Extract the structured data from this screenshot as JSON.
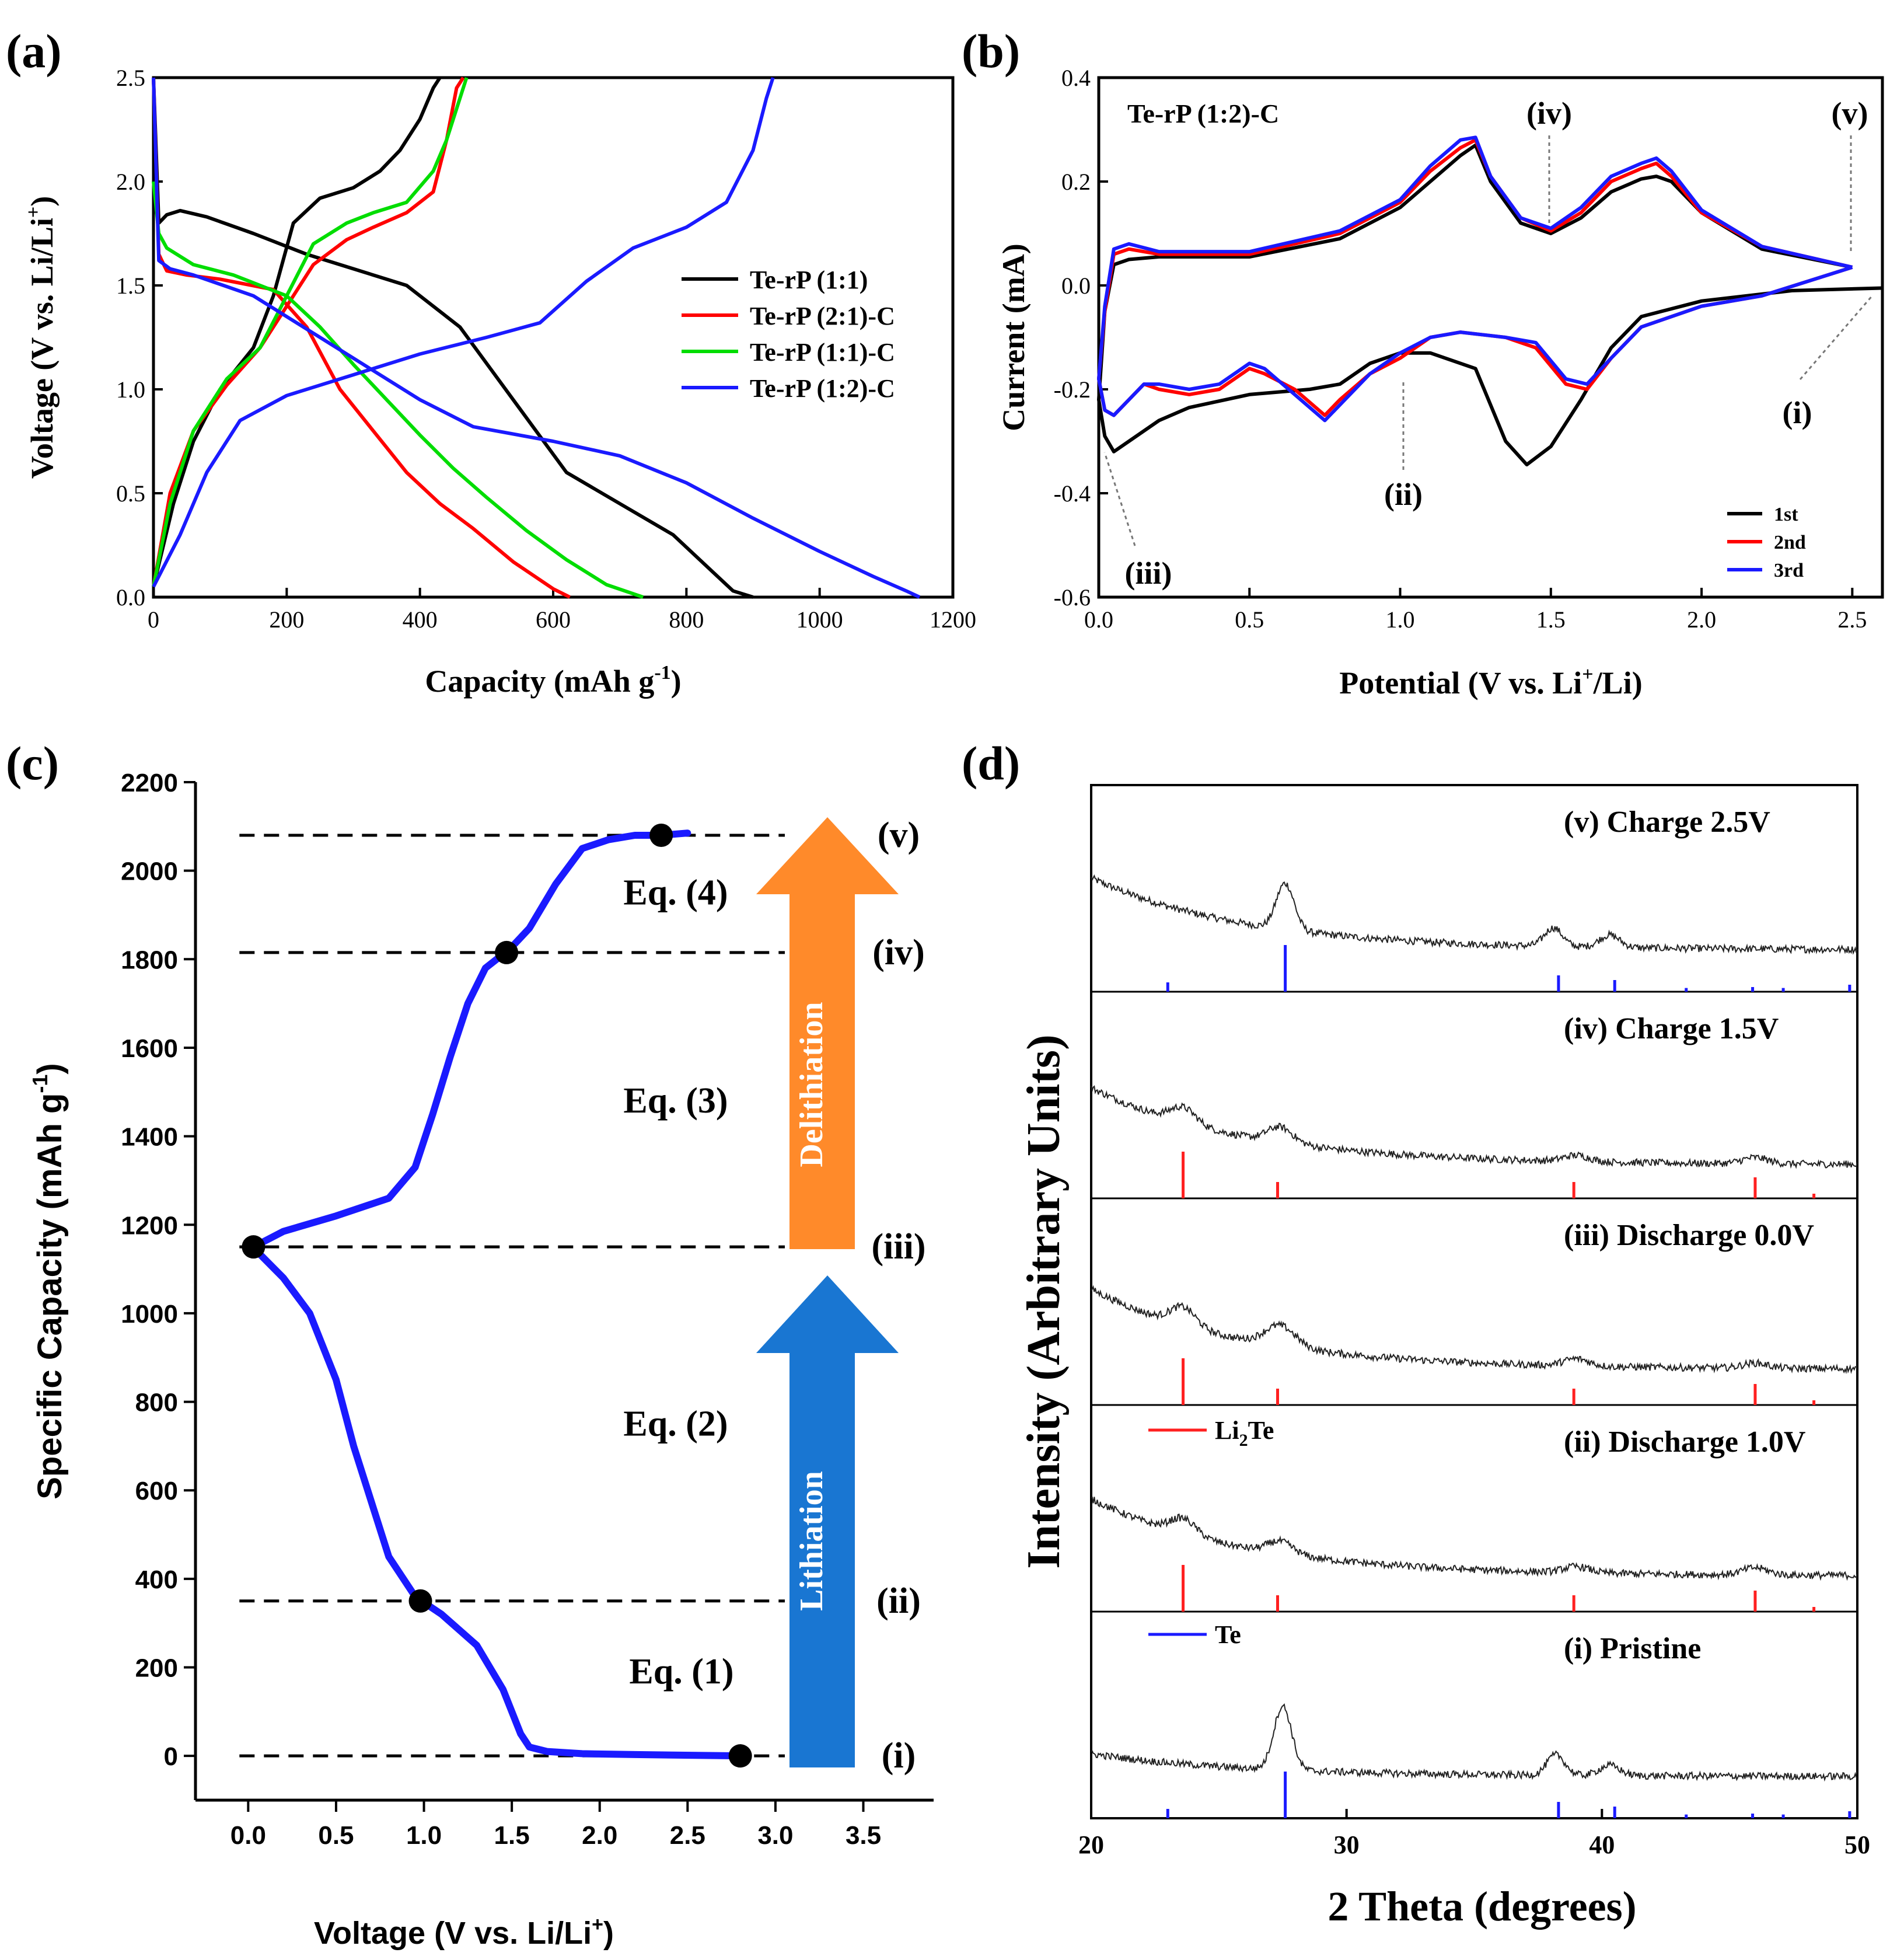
{
  "figure": {
    "panels": [
      "(a)",
      "(b)",
      "(c)",
      "(d)"
    ]
  },
  "chart_data": [
    {
      "id": "a",
      "type": "line",
      "panel_label": "(a)",
      "xlabel": "Capacity (mAh g",
      "xlabel_sup": "-1",
      "xlabel_end": ")",
      "ylabel": "Voltage (V vs. Li/Li",
      "ylabel_sup": "+",
      "ylabel_end": ")",
      "xlim": [
        0,
        1200
      ],
      "ylim": [
        0,
        2.5
      ],
      "xticks": [
        0,
        200,
        400,
        600,
        800,
        1000,
        1200
      ],
      "yticks": [
        0.0,
        0.5,
        1.0,
        1.5,
        2.0,
        2.5
      ],
      "legend": [
        "Te-rP (1:1)",
        "Te-rP (2:1)-C",
        "Te-rP (1:1)-C",
        "Te-rP (1:2)-C"
      ],
      "colors": [
        "#000000",
        "#ff0000",
        "#00dd00",
        "#1a1aff"
      ],
      "series": [
        {
          "name": "Te-rP (1:1) discharge",
          "color": "#000000",
          "x": [
            0,
            8,
            20,
            40,
            80,
            150,
            230,
            300,
            380,
            460,
            540,
            620,
            700,
            780,
            840,
            870,
            900
          ],
          "y": [
            2.5,
            1.8,
            1.84,
            1.86,
            1.83,
            1.75,
            1.65,
            1.58,
            1.5,
            1.3,
            0.95,
            0.6,
            0.45,
            0.3,
            0.12,
            0.03,
            0.0
          ]
        },
        {
          "name": "Te-rP (1:1) charge",
          "color": "#000000",
          "x": [
            0,
            30,
            60,
            100,
            150,
            180,
            210,
            250,
            300,
            340,
            370,
            400,
            420,
            430
          ],
          "y": [
            0.05,
            0.45,
            0.75,
            1.0,
            1.2,
            1.45,
            1.8,
            1.92,
            1.97,
            2.05,
            2.15,
            2.3,
            2.45,
            2.5
          ]
        },
        {
          "name": "Te-rP (2:1)-C discharge",
          "color": "#ff0000",
          "x": [
            0,
            8,
            20,
            50,
            100,
            180,
            230,
            280,
            330,
            380,
            430,
            480,
            540,
            600,
            625
          ],
          "y": [
            2.5,
            1.65,
            1.57,
            1.55,
            1.53,
            1.48,
            1.3,
            1.0,
            0.8,
            0.6,
            0.45,
            0.33,
            0.17,
            0.04,
            0.0
          ]
        },
        {
          "name": "Te-rP (2:1)-C charge",
          "color": "#ff0000",
          "x": [
            0,
            25,
            60,
            110,
            160,
            200,
            240,
            290,
            330,
            380,
            420,
            440,
            455,
            465
          ],
          "y": [
            0.05,
            0.5,
            0.8,
            1.02,
            1.2,
            1.4,
            1.6,
            1.72,
            1.78,
            1.85,
            1.95,
            2.2,
            2.45,
            2.5
          ]
        },
        {
          "name": "Te-rP (1:1)-C discharge",
          "color": "#00dd00",
          "x": [
            0,
            8,
            20,
            60,
            120,
            200,
            250,
            300,
            350,
            400,
            450,
            500,
            560,
            620,
            680,
            735
          ],
          "y": [
            2.0,
            1.75,
            1.68,
            1.6,
            1.55,
            1.45,
            1.3,
            1.12,
            0.95,
            0.78,
            0.62,
            0.48,
            0.32,
            0.18,
            0.06,
            0.0
          ]
        },
        {
          "name": "Te-rP (1:1)-C charge",
          "color": "#00dd00",
          "x": [
            0,
            25,
            60,
            110,
            160,
            200,
            240,
            290,
            330,
            380,
            420,
            440,
            460,
            470
          ],
          "y": [
            0.05,
            0.45,
            0.8,
            1.05,
            1.2,
            1.45,
            1.7,
            1.8,
            1.85,
            1.9,
            2.05,
            2.2,
            2.4,
            2.5
          ]
        },
        {
          "name": "Te-rP (1:2)-C discharge",
          "color": "#1a1aff",
          "x": [
            0,
            8,
            25,
            60,
            150,
            300,
            400,
            480,
            600,
            700,
            800,
            900,
            1000,
            1080,
            1130,
            1150
          ],
          "y": [
            2.5,
            1.62,
            1.58,
            1.55,
            1.45,
            1.15,
            0.95,
            0.82,
            0.75,
            0.68,
            0.55,
            0.38,
            0.22,
            0.1,
            0.03,
            0.0
          ]
        },
        {
          "name": "Te-rP (1:2)-C charge",
          "color": "#1a1aff",
          "x": [
            0,
            40,
            80,
            130,
            200,
            300,
            400,
            500,
            580,
            650,
            720,
            800,
            860,
            900,
            920,
            930
          ],
          "y": [
            0.05,
            0.3,
            0.6,
            0.85,
            0.97,
            1.07,
            1.17,
            1.25,
            1.32,
            1.52,
            1.68,
            1.78,
            1.9,
            2.15,
            2.4,
            2.5
          ]
        }
      ]
    },
    {
      "id": "b",
      "type": "line",
      "panel_label": "(b)",
      "xlabel": "Potential (V vs. Li",
      "xlabel_sup": "+",
      "xlabel_end": "/Li)",
      "ylabel": "Current (mA)",
      "xlim": [
        0,
        2.6
      ],
      "ylim": [
        -0.6,
        0.4
      ],
      "xticks": [
        0.0,
        0.5,
        1.0,
        1.5,
        2.0,
        2.5
      ],
      "yticks": [
        -0.6,
        -0.4,
        -0.2,
        0.0,
        0.2,
        0.4
      ],
      "inset_title": "Te-rP (1:2)-C",
      "legend": [
        "1st",
        "2nd",
        "3rd"
      ],
      "colors": [
        "#000000",
        "#ff0000",
        "#1a1aff"
      ],
      "annotations": [
        "(i)",
        "(ii)",
        "(iii)",
        "(iv)",
        "(v)"
      ],
      "series": [
        {
          "name": "1st",
          "color": "#000000",
          "x": [
            2.6,
            2.3,
            2.0,
            1.8,
            1.7,
            1.6,
            1.5,
            1.42,
            1.35,
            1.25,
            1.1,
            1.0,
            0.9,
            0.8,
            0.7,
            0.5,
            0.3,
            0.2,
            0.1,
            0.05,
            0.02,
            0.0,
            0.02,
            0.05,
            0.1,
            0.2,
            0.5,
            0.8,
            1.0,
            1.1,
            1.2,
            1.25,
            1.3,
            1.4,
            1.5,
            1.6,
            1.7,
            1.8,
            1.85,
            1.9,
            2.0,
            2.2,
            2.5
          ],
          "y": [
            -0.005,
            -0.01,
            -0.03,
            -0.06,
            -0.12,
            -0.22,
            -0.31,
            -0.345,
            -0.3,
            -0.16,
            -0.13,
            -0.13,
            -0.15,
            -0.19,
            -0.2,
            -0.21,
            -0.235,
            -0.26,
            -0.3,
            -0.32,
            -0.29,
            -0.22,
            -0.05,
            0.04,
            0.05,
            0.055,
            0.055,
            0.09,
            0.15,
            0.2,
            0.25,
            0.27,
            0.2,
            0.12,
            0.1,
            0.13,
            0.18,
            0.205,
            0.21,
            0.2,
            0.14,
            0.07,
            0.035
          ]
        },
        {
          "name": "2nd",
          "color": "#ff0000",
          "x": [
            2.5,
            2.2,
            2.0,
            1.8,
            1.7,
            1.62,
            1.55,
            1.45,
            1.35,
            1.2,
            1.1,
            1.0,
            0.9,
            0.8,
            0.75,
            0.65,
            0.55,
            0.5,
            0.4,
            0.3,
            0.2,
            0.15,
            0.1,
            0.05,
            0.02,
            0.0,
            0.02,
            0.05,
            0.1,
            0.2,
            0.5,
            0.8,
            1.0,
            1.1,
            1.2,
            1.25,
            1.3,
            1.4,
            1.5,
            1.6,
            1.7,
            1.8,
            1.85,
            1.9,
            2.0,
            2.2,
            2.5
          ],
          "y": [
            0.035,
            -0.02,
            -0.04,
            -0.08,
            -0.14,
            -0.2,
            -0.19,
            -0.12,
            -0.1,
            -0.09,
            -0.1,
            -0.14,
            -0.17,
            -0.22,
            -0.25,
            -0.2,
            -0.17,
            -0.16,
            -0.2,
            -0.21,
            -0.2,
            -0.19,
            -0.22,
            -0.25,
            -0.24,
            -0.18,
            -0.05,
            0.06,
            0.07,
            0.06,
            0.06,
            0.1,
            0.16,
            0.22,
            0.265,
            0.28,
            0.21,
            0.13,
            0.105,
            0.14,
            0.2,
            0.225,
            0.235,
            0.21,
            0.14,
            0.075,
            0.035
          ]
        },
        {
          "name": "3rd",
          "color": "#1a1aff",
          "x": [
            2.5,
            2.2,
            2.0,
            1.8,
            1.7,
            1.62,
            1.55,
            1.45,
            1.35,
            1.2,
            1.1,
            1.0,
            0.9,
            0.8,
            0.75,
            0.65,
            0.55,
            0.5,
            0.4,
            0.3,
            0.2,
            0.15,
            0.1,
            0.05,
            0.02,
            0.0,
            0.02,
            0.05,
            0.1,
            0.2,
            0.5,
            0.8,
            1.0,
            1.1,
            1.2,
            1.25,
            1.3,
            1.4,
            1.5,
            1.6,
            1.7,
            1.8,
            1.85,
            1.9,
            2.0,
            2.2,
            2.5
          ],
          "y": [
            0.035,
            -0.02,
            -0.04,
            -0.08,
            -0.14,
            -0.19,
            -0.18,
            -0.11,
            -0.1,
            -0.09,
            -0.1,
            -0.13,
            -0.17,
            -0.23,
            -0.26,
            -0.21,
            -0.16,
            -0.15,
            -0.19,
            -0.2,
            -0.19,
            -0.19,
            -0.22,
            -0.25,
            -0.24,
            -0.18,
            -0.04,
            0.07,
            0.08,
            0.065,
            0.065,
            0.105,
            0.165,
            0.23,
            0.28,
            0.285,
            0.21,
            0.13,
            0.11,
            0.15,
            0.21,
            0.235,
            0.245,
            0.22,
            0.145,
            0.075,
            0.035
          ]
        }
      ]
    },
    {
      "id": "c",
      "type": "line",
      "panel_label": "(c)",
      "xlabel": "Voltage (V vs. Li/Li",
      "xlabel_sup": "+",
      "xlabel_end": ")",
      "ylabel": "Specific Capacity (mAh g",
      "ylabel_sup": "-1",
      "ylabel_end": ")",
      "xlim": [
        -0.3,
        3.9
      ],
      "ylim": [
        -100,
        2200
      ],
      "xticks": [
        0.0,
        0.5,
        1.0,
        1.5,
        2.0,
        2.5,
        3.0,
        3.5
      ],
      "yticks": [
        0,
        200,
        400,
        600,
        800,
        1000,
        1200,
        1400,
        1600,
        1800,
        2000,
        2200
      ],
      "markers": [
        {
          "x": 2.8,
          "y": 0
        },
        {
          "x": 0.98,
          "y": 350
        },
        {
          "x": 0.03,
          "y": 1150
        },
        {
          "x": 1.47,
          "y": 1815
        },
        {
          "x": 2.35,
          "y": 2080
        }
      ],
      "levels": [
        {
          "y": 0,
          "label": "(i)"
        },
        {
          "y": 350,
          "label": "(ii)"
        },
        {
          "y": 1150,
          "label": "(iii)"
        },
        {
          "y": 1815,
          "label": "(iv)"
        },
        {
          "y": 2080,
          "label": "(v)"
        }
      ],
      "equations": [
        {
          "label": "Eq. (1)",
          "y": 190
        },
        {
          "label": "Eq. (2)",
          "y": 750
        },
        {
          "label": "Eq. (3)",
          "y": 1480
        },
        {
          "label": "Eq. (4)",
          "y": 1950
        }
      ],
      "arrows": [
        {
          "label": "Lithiation",
          "color": "#1976d2"
        },
        {
          "label": "Delithiation",
          "color": "#ff8a2a"
        }
      ],
      "series": [
        {
          "name": "curve",
          "color": "#1a1aff",
          "x": [
            2.8,
            2.2,
            1.9,
            1.7,
            1.6,
            1.55,
            1.45,
            1.3,
            1.1,
            0.95,
            0.8,
            0.68,
            0.6,
            0.5,
            0.35,
            0.2,
            0.05,
            0.03,
            0.2,
            0.5,
            0.8,
            0.95,
            1.05,
            1.15,
            1.25,
            1.35,
            1.43,
            1.47,
            1.6,
            1.75,
            1.9,
            2.05,
            2.2,
            2.35,
            2.5
          ],
          "y": [
            0,
            3,
            5,
            10,
            20,
            50,
            150,
            250,
            320,
            360,
            450,
            600,
            700,
            850,
            1000,
            1080,
            1140,
            1150,
            1185,
            1220,
            1260,
            1330,
            1450,
            1580,
            1700,
            1780,
            1805,
            1815,
            1870,
            1970,
            2050,
            2070,
            2080,
            2080,
            2085
          ]
        }
      ]
    },
    {
      "id": "d",
      "type": "line",
      "panel_label": "(d)",
      "xlabel": "2 Theta (degrees)",
      "ylabel": "Intensity (Arbitrary Units)",
      "xlim": [
        20,
        50
      ],
      "xticks": [
        20,
        30,
        40,
        50
      ],
      "ref_legend": [
        {
          "label": "Li",
          "sub": "2",
          "tail": "Te",
          "color": "#ff2020"
        },
        {
          "label": "Te",
          "sub": "",
          "tail": "",
          "color": "#1a1aff"
        }
      ],
      "te_ref_lines": [
        23.0,
        27.6,
        38.3,
        40.5,
        43.3,
        45.9,
        47.1,
        49.7
      ],
      "te_ref_heights": [
        0.2,
        1.0,
        0.35,
        0.25,
        0.08,
        0.1,
        0.08,
        0.15
      ],
      "li2te_ref_lines": [
        23.6,
        27.3,
        38.9,
        46.0,
        48.3
      ],
      "li2te_ref_heights": [
        1.0,
        0.35,
        0.35,
        0.45,
        0.1
      ],
      "patterns": [
        {
          "label": "(v) Charge 2.5V",
          "ref": "te",
          "peaks": [
            {
              "c": 27.6,
              "h": 0.45,
              "w": 0.35
            },
            {
              "c": 38.1,
              "h": 0.18,
              "w": 0.35
            },
            {
              "c": 40.3,
              "h": 0.12,
              "w": 0.4
            }
          ],
          "bg": [
            0.7,
            0.18
          ]
        },
        {
          "label": "(iv) Charge 1.5V",
          "ref": "li2te",
          "peaks": [
            {
              "c": 23.6,
              "h": 0.15,
              "w": 0.5
            },
            {
              "c": 27.4,
              "h": 0.15,
              "w": 0.5
            },
            {
              "c": 39.0,
              "h": 0.06,
              "w": 0.5
            },
            {
              "c": 46.0,
              "h": 0.06,
              "w": 0.5
            }
          ],
          "bg": [
            0.75,
            0.1
          ]
        },
        {
          "label": "(iii) Discharge 0.0V",
          "ref": "li2te",
          "peaks": [
            {
              "c": 23.6,
              "h": 0.18,
              "w": 0.5
            },
            {
              "c": 27.4,
              "h": 0.2,
              "w": 0.6
            },
            {
              "c": 39.0,
              "h": 0.07,
              "w": 0.5
            },
            {
              "c": 46.0,
              "h": 0.05,
              "w": 0.5
            }
          ],
          "bg": [
            0.78,
            0.12
          ]
        },
        {
          "label": "(ii) Discharge 1.0V",
          "ref": "li2te",
          "peaks": [
            {
              "c": 23.6,
              "h": 0.15,
              "w": 0.5
            },
            {
              "c": 27.4,
              "h": 0.12,
              "w": 0.5
            },
            {
              "c": 39.0,
              "h": 0.06,
              "w": 0.5
            },
            {
              "c": 46.0,
              "h": 0.07,
              "w": 0.5
            }
          ],
          "bg": [
            0.75,
            0.12
          ]
        },
        {
          "label": "(i) Pristine",
          "ref": "te",
          "peaks": [
            {
              "c": 27.5,
              "h": 0.62,
              "w": 0.35
            },
            {
              "c": 38.2,
              "h": 0.2,
              "w": 0.35
            },
            {
              "c": 40.3,
              "h": 0.1,
              "w": 0.4
            }
          ],
          "bg": [
            0.22,
            0.18
          ]
        }
      ]
    }
  ]
}
